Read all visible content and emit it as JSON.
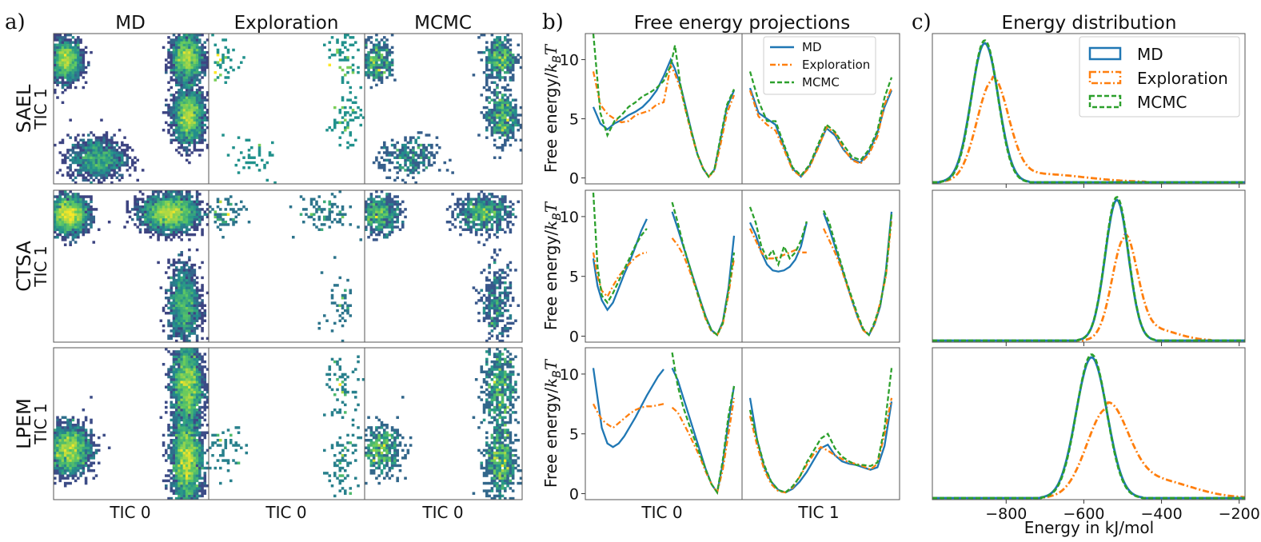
{
  "figure": {
    "panel_a_letter": "a)",
    "panel_b_letter": "b)",
    "panel_c_letter": "c)"
  },
  "chart_data": [
    {
      "panel": "a",
      "type": "heatmap",
      "title": "",
      "column_titles": [
        "MD",
        "Exploration",
        "MCMC"
      ],
      "row_labels": [
        "SAEL",
        "CTSA",
        "LPEM"
      ],
      "xlabel": "TIC 0",
      "ylabel": "TIC 1",
      "colormap": [
        "#440154",
        "#3b528b",
        "#21918c",
        "#5ec962",
        "#fde725"
      ],
      "rows": [
        {
          "protein": "SAEL",
          "clusters": [
            {
              "x": 0.08,
              "y": 0.82,
              "sx": 0.05,
              "sy": 0.07,
              "w": 0.75
            },
            {
              "x": 0.28,
              "y": 0.17,
              "sx": 0.09,
              "sy": 0.07,
              "w": 0.6
            },
            {
              "x": 0.86,
              "y": 0.84,
              "sx": 0.05,
              "sy": 0.08,
              "w": 0.9
            },
            {
              "x": 0.87,
              "y": 0.45,
              "sx": 0.05,
              "sy": 0.09,
              "w": 1.0
            }
          ]
        },
        {
          "protein": "CTSA",
          "clusters": [
            {
              "x": 0.1,
              "y": 0.84,
              "sx": 0.06,
              "sy": 0.06,
              "w": 0.85
            },
            {
              "x": 0.75,
              "y": 0.85,
              "sx": 0.09,
              "sy": 0.06,
              "w": 1.0
            },
            {
              "x": 0.84,
              "y": 0.25,
              "sx": 0.05,
              "sy": 0.13,
              "w": 0.55
            }
          ]
        },
        {
          "protein": "LPEM",
          "clusters": [
            {
              "x": 0.1,
              "y": 0.33,
              "sx": 0.07,
              "sy": 0.08,
              "w": 0.75
            },
            {
              "x": 0.86,
              "y": 0.76,
              "sx": 0.05,
              "sy": 0.14,
              "w": 0.85
            },
            {
              "x": 0.86,
              "y": 0.25,
              "sx": 0.05,
              "sy": 0.14,
              "w": 1.0
            }
          ]
        }
      ]
    },
    {
      "panel": "b",
      "type": "line",
      "title": "Free energy projections",
      "ylabel": "Free energy/k_B T",
      "ylabel_main": "Free energy/",
      "ylabel_k": "k",
      "ylabel_sub": "B",
      "ylabel_T": "T",
      "ylim": [
        -0.5,
        12.2
      ],
      "yticks": [
        0,
        5,
        10
      ],
      "xlabels": [
        "TIC 0",
        "TIC 1"
      ],
      "legend": [
        "MD",
        "Exploration",
        "MCMC"
      ],
      "colors": {
        "MD": "#1f77b4",
        "Exploration": "#ff7f0e",
        "MCMC": "#2ca02c"
      },
      "rows": [
        {
          "protein": "SAEL",
          "tic0": {
            "x": [
              0,
              0.05,
              0.1,
              0.15,
              0.2,
              0.25,
              0.3,
              0.35,
              0.4,
              0.45,
              0.5,
              0.55,
              0.58,
              0.62,
              0.66,
              0.7,
              0.74,
              0.78,
              0.82,
              0.86,
              0.9,
              0.95,
              1.0
            ],
            "MD": [
              6,
              4.6,
              4.1,
              4.6,
              4.9,
              5.3,
              5.6,
              6.0,
              6.6,
              7.4,
              8.6,
              10.0,
              9.2,
              7.8,
              5.8,
              3.8,
              2.0,
              0.8,
              0.1,
              0.7,
              3.0,
              6.0,
              7.4
            ],
            "Exploration": [
              9,
              6.2,
              5.4,
              5.0,
              4.7,
              4.8,
              5.3,
              5.5,
              5.7,
              6.2,
              6.4,
              9.5,
              8.8,
              7.5,
              5.5,
              3.6,
              2.0,
              0.8,
              0.1,
              0.6,
              2.6,
              5.5,
              7.0
            ],
            "MCMC": [
              12.2,
              5.5,
              3.6,
              4.8,
              5.3,
              6.0,
              6.4,
              6.9,
              7.2,
              7.6,
              8.2,
              9.5,
              11.2,
              7.8,
              5.6,
              3.8,
              2.0,
              0.8,
              0.1,
              0.7,
              3.2,
              6.2,
              7.5
            ]
          },
          "tic1": {
            "x": [
              0,
              0.06,
              0.12,
              0.18,
              0.24,
              0.3,
              0.36,
              0.42,
              0.48,
              0.54,
              0.6,
              0.66,
              0.72,
              0.78,
              0.84,
              0.9,
              0.95,
              1.0
            ],
            "MD": [
              7.6,
              5.5,
              5.0,
              4.5,
              2.6,
              0.8,
              0.1,
              1.0,
              2.6,
              4.2,
              3.6,
              2.4,
              1.6,
              1.3,
              2.2,
              3.8,
              6.0,
              7.4
            ],
            "Exploration": [
              7.4,
              5.2,
              4.5,
              4.0,
              2.4,
              0.7,
              0.1,
              0.9,
              2.5,
              4.3,
              3.8,
              2.5,
              1.5,
              1.2,
              2.0,
              3.5,
              6.2,
              7.6
            ],
            "MCMC": [
              9.0,
              6.5,
              4.8,
              4.8,
              2.8,
              0.9,
              0.2,
              1.1,
              2.8,
              4.5,
              3.9,
              2.8,
              1.8,
              1.5,
              2.4,
              4.0,
              6.8,
              8.5
            ]
          }
        },
        {
          "protein": "CTSA",
          "tic0": {
            "x": [
              0,
              0.03,
              0.06,
              0.1,
              0.14,
              0.18,
              0.22,
              0.26,
              0.3,
              0.34,
              0.38,
              null,
              0.56,
              0.6,
              0.64,
              0.68,
              0.72,
              0.76,
              0.8,
              0.84,
              0.88,
              0.92,
              0.96,
              1.0
            ],
            "MD": [
              6.5,
              4.2,
              3.0,
              2.2,
              2.8,
              4.0,
              5.2,
              6.3,
              7.5,
              8.8,
              9.8,
              null,
              10.4,
              9.0,
              7.5,
              6.0,
              4.5,
              3.0,
              1.6,
              0.5,
              0.1,
              1.2,
              4.0,
              8.4
            ],
            "Exploration": [
              7.0,
              5.0,
              3.8,
              3.3,
              4.2,
              5.0,
              5.6,
              6.1,
              6.6,
              6.9,
              7.0,
              null,
              8.2,
              7.6,
              6.8,
              5.6,
              4.3,
              2.8,
              1.4,
              0.4,
              0.1,
              1.0,
              3.5,
              6.5
            ],
            "MCMC": [
              12.0,
              5.8,
              3.4,
              2.8,
              3.6,
              4.6,
              5.6,
              6.6,
              7.6,
              8.4,
              9.0,
              null,
              11.2,
              9.5,
              7.6,
              6.0,
              4.4,
              2.9,
              1.5,
              0.5,
              0.1,
              1.1,
              3.8,
              7.0
            ]
          },
          "tic1": {
            "x": [
              0,
              0.04,
              0.08,
              0.12,
              0.16,
              0.2,
              0.24,
              0.28,
              0.32,
              0.36,
              0.4,
              null,
              0.52,
              0.56,
              0.6,
              0.64,
              0.68,
              0.72,
              0.76,
              0.8,
              0.84,
              0.88,
              0.92,
              0.96,
              1.0
            ],
            "MD": [
              9.5,
              8.5,
              7.0,
              6.0,
              5.5,
              5.4,
              5.5,
              5.8,
              6.4,
              7.5,
              9.5,
              null,
              10.3,
              9.0,
              7.5,
              6.0,
              4.5,
              3.0,
              1.6,
              0.5,
              0.1,
              1.0,
              2.5,
              5.5,
              10.4
            ],
            "Exploration": [
              9.0,
              8.0,
              7.0,
              6.5,
              6.5,
              6.6,
              6.8,
              7.0,
              7.2,
              7.0,
              7.0,
              null,
              9.0,
              8.0,
              7.0,
              5.8,
              4.4,
              3.0,
              1.6,
              0.5,
              0.1,
              1.0,
              2.8,
              5.0,
              9.8
            ],
            "MCMC": [
              10.8,
              9.5,
              7.5,
              6.5,
              7.2,
              6.0,
              7.5,
              6.5,
              7.0,
              8.0,
              9.6,
              null,
              10.5,
              9.5,
              7.8,
              6.2,
              4.6,
              3.2,
              1.8,
              0.6,
              0.1,
              1.2,
              2.6,
              5.2,
              10.2
            ]
          }
        },
        {
          "protein": "LPEM",
          "tic0": {
            "x": [
              0,
              0.03,
              0.06,
              0.1,
              0.14,
              0.18,
              0.22,
              0.26,
              0.3,
              0.34,
              0.38,
              0.42,
              0.46,
              0.5,
              null,
              0.56,
              0.6,
              0.64,
              0.68,
              0.72,
              0.76,
              0.8,
              0.84,
              0.88,
              0.92,
              0.96,
              1.0
            ],
            "MD": [
              10.5,
              8.0,
              5.5,
              4.2,
              3.9,
              4.2,
              4.8,
              5.6,
              6.4,
              7.3,
              8.2,
              9.0,
              9.8,
              10.4,
              null,
              10.5,
              9.5,
              8.0,
              6.5,
              5.0,
              3.5,
              2.0,
              0.8,
              0.1,
              2.5,
              6.0,
              9.0
            ],
            "Exploration": [
              7.5,
              6.8,
              6.2,
              5.8,
              5.5,
              5.9,
              6.3,
              6.7,
              7.0,
              7.2,
              7.3,
              7.3,
              7.4,
              7.5,
              null,
              7.2,
              6.8,
              5.9,
              5.0,
              4.0,
              3.0,
              1.8,
              0.8,
              0.1,
              2.0,
              5.0,
              8.0
            ],
            "MCMC": [
              null,
              null,
              null,
              null,
              null,
              null,
              null,
              null,
              null,
              null,
              null,
              null,
              null,
              null,
              null,
              11.8,
              9.0,
              7.2,
              5.8,
              4.5,
              3.2,
              2.0,
              0.8,
              0.1,
              2.8,
              6.5,
              9.0
            ]
          },
          "tic1": {
            "x": [
              0,
              0.05,
              0.1,
              0.15,
              0.2,
              0.25,
              0.3,
              0.35,
              0.4,
              0.45,
              0.5,
              0.55,
              0.6,
              0.65,
              0.7,
              0.75,
              0.8,
              0.85,
              0.9,
              0.95,
              1.0
            ],
            "MD": [
              8.0,
              4.5,
              2.2,
              1.0,
              0.3,
              0.1,
              0.4,
              1.0,
              1.8,
              2.8,
              3.8,
              4.1,
              3.2,
              2.7,
              2.5,
              2.4,
              2.2,
              2.0,
              2.2,
              4.0,
              7.7
            ],
            "Exploration": [
              6.5,
              4.0,
              2.0,
              0.8,
              0.2,
              0.1,
              0.5,
              1.4,
              2.4,
              3.3,
              3.9,
              3.6,
              3.2,
              2.9,
              2.6,
              2.5,
              2.3,
              2.0,
              2.5,
              5.0,
              8.0
            ],
            "MCMC": [
              7.0,
              4.5,
              2.4,
              1.0,
              0.3,
              0.1,
              0.6,
              1.4,
              2.6,
              3.6,
              4.6,
              5.0,
              3.8,
              3.1,
              2.7,
              2.4,
              2.4,
              2.3,
              2.6,
              5.5,
              10.5
            ]
          }
        }
      ]
    },
    {
      "panel": "c",
      "type": "area",
      "title": "Energy distribution",
      "xlabel": "Energy in kJ/mol",
      "xlim": [
        -990,
        -185
      ],
      "xticks": [
        -800,
        -600,
        -400,
        -200
      ],
      "xticklabels": [
        "−800",
        "−600",
        "−400",
        "−200"
      ],
      "legend": [
        "MD",
        "Exploration",
        "MCMC"
      ],
      "colors": {
        "MD": "#1f77b4",
        "Exploration": "#ff7f0e",
        "MCMC": "#2ca02c"
      },
      "rows": [
        {
          "protein": "SAEL",
          "MD": {
            "mean": -855,
            "sd": 35,
            "peak": 1.0
          },
          "MCMC": {
            "mean": -855,
            "sd": 34,
            "peak": 1.02
          },
          "Exploration": {
            "mean": -835,
            "sd": 40,
            "peak": 0.72,
            "tail_mean": -720,
            "tail_sd": 120,
            "tail_peak": 0.06
          }
        },
        {
          "protein": "CTSA",
          "MD": {
            "mean": -515,
            "sd": 30,
            "peak": 1.0
          },
          "MCMC": {
            "mean": -515,
            "sd": 30,
            "peak": 1.02
          },
          "Exploration": {
            "mean": -495,
            "sd": 32,
            "peak": 0.72,
            "tail_mean": -420,
            "tail_sd": 60,
            "tail_peak": 0.08
          }
        },
        {
          "protein": "LPEM",
          "MD": {
            "mean": -580,
            "sd": 40,
            "peak": 1.0
          },
          "MCMC": {
            "mean": -580,
            "sd": 39,
            "peak": 1.02
          },
          "Exploration": {
            "mean": -540,
            "sd": 52,
            "peak": 0.62,
            "tail_mean": -420,
            "tail_sd": 95,
            "tail_peak": 0.13
          }
        }
      ]
    }
  ]
}
